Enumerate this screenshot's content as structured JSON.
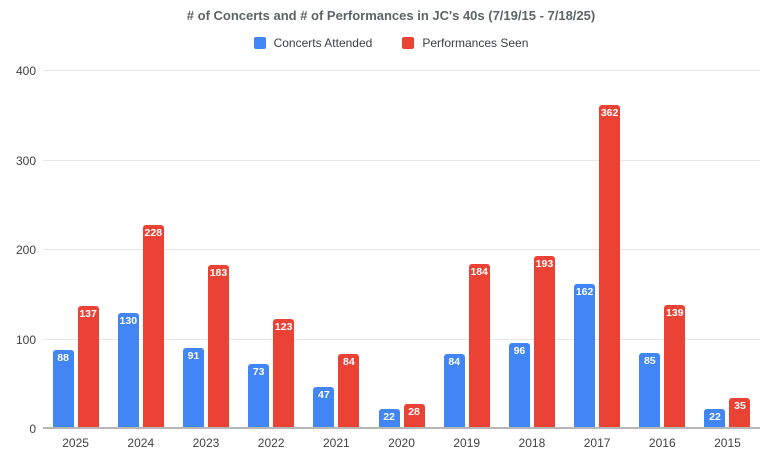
{
  "chart_data": {
    "type": "bar",
    "title": "# of Concerts and # of Performances in JC's 40s (7/19/15 - 7/18/25)",
    "categories": [
      "2025",
      "2024",
      "2023",
      "2022",
      "2021",
      "2020",
      "2019",
      "2018",
      "2017",
      "2016",
      "2015"
    ],
    "series": [
      {
        "name": "Concerts Attended",
        "color": "#4285F4",
        "values": [
          88,
          130,
          91,
          73,
          47,
          22,
          84,
          96,
          162,
          85,
          22
        ]
      },
      {
        "name": "Performances Seen",
        "color": "#EA4335",
        "values": [
          137,
          228,
          183,
          123,
          84,
          28,
          184,
          193,
          362,
          139,
          35
        ]
      }
    ],
    "xlabel": "",
    "ylabel": "",
    "ylim": [
      0,
      400
    ],
    "yticks": [
      0,
      100,
      200,
      300,
      400
    ],
    "grid": "horizontal",
    "legend_position": "top",
    "data_labels": true,
    "data_label_color": "#ffffff",
    "gridline_color": "#e6e6e6",
    "baseline_color": "#b7b7b7",
    "background_color": "#ffffff"
  }
}
